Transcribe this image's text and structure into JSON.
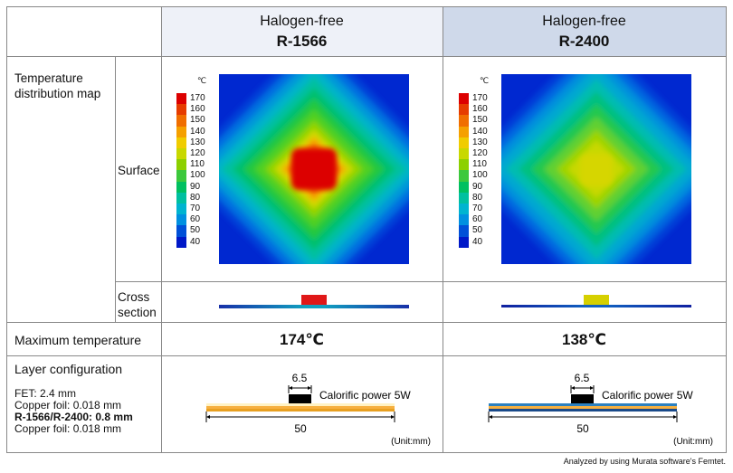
{
  "columns": [
    {
      "line1": "Halogen-free",
      "line2": "R-1566",
      "max_temp": "174℃",
      "hot_color": "#dc0000",
      "board_top": "#fff2c4",
      "board_mid": "#f7b040",
      "board_bot": "#e8a020"
    },
    {
      "line1": "Halogen-free",
      "line2": "R-2400",
      "max_temp": "138℃",
      "hot_color": "#d6d600",
      "board_top": "#2a80c0",
      "board_mid": "#f7b040",
      "board_bot": "#1a4a8a"
    }
  ],
  "rows": {
    "temp_map": {
      "line1": "Temperature",
      "line2": "distribution map"
    },
    "surface": "Surface",
    "cross": {
      "line1": "Cross",
      "line2": "section"
    },
    "max_temp": "Maximum temperature",
    "layer": {
      "title": "Layer configuration",
      "fet": "FET: 2.4 mm",
      "cu1": "Copper foil: 0.018 mm",
      "board": "R-1566/R-2400: 0.8 mm",
      "cu2": "Copper foil: 0.018 mm"
    }
  },
  "scale": {
    "unit": "℃",
    "ticks": [
      "170",
      "160",
      "150",
      "140",
      "130",
      "120",
      "110",
      "100",
      "90",
      "80",
      "70",
      "60",
      "50",
      "40"
    ],
    "colors": [
      "#dc0000",
      "#e63c00",
      "#f06e00",
      "#f5a000",
      "#f0cc00",
      "#c8d800",
      "#8cd000",
      "#3cc83c",
      "#00c060",
      "#00c0a0",
      "#00b4d0",
      "#0090e0",
      "#0050d8",
      "#0018c8"
    ]
  },
  "dims": {
    "fet_width": "6.5",
    "board_width": "50",
    "power": "Calorific power 5W",
    "unit": "(Unit:mm)"
  },
  "footer": "Analyzed by using Murata software's Femtet."
}
